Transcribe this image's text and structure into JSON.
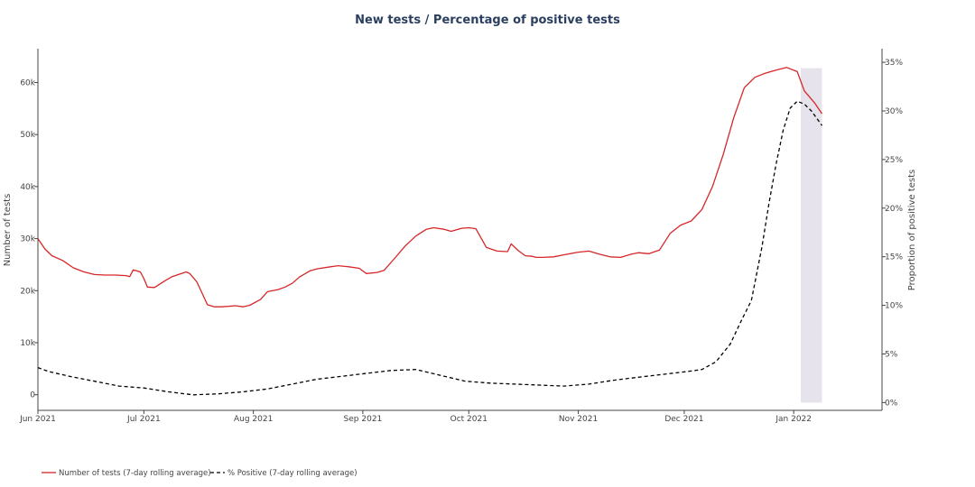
{
  "chart_data": {
    "type": "line",
    "title": "New tests / Percentage of positive tests",
    "xlabel": "",
    "ylabel": "Number of tests",
    "y2label": "Proportion of positive tests",
    "x_range": [
      "2021-06-01",
      "2022-01-26"
    ],
    "ylim": [
      -3000,
      66500
    ],
    "y2lim": [
      -0.8,
      36.4
    ],
    "x_ticks": [
      {
        "date": "2021-06-01",
        "label": "Jun 2021"
      },
      {
        "date": "2021-07-01",
        "label": "Jul 2021"
      },
      {
        "date": "2021-08-01",
        "label": "Aug 2021"
      },
      {
        "date": "2021-09-01",
        "label": "Sep 2021"
      },
      {
        "date": "2021-10-01",
        "label": "Oct 2021"
      },
      {
        "date": "2021-11-01",
        "label": "Nov 2021"
      },
      {
        "date": "2021-12-01",
        "label": "Dec 2021"
      },
      {
        "date": "2022-01-01",
        "label": "Jan 2022"
      }
    ],
    "y_ticks": [
      {
        "value": 0,
        "label": "0"
      },
      {
        "value": 10000,
        "label": "10k"
      },
      {
        "value": 20000,
        "label": "20k"
      },
      {
        "value": 30000,
        "label": "30k"
      },
      {
        "value": 40000,
        "label": "40k"
      },
      {
        "value": 50000,
        "label": "50k"
      },
      {
        "value": 60000,
        "label": "60k"
      }
    ],
    "y2_ticks": [
      {
        "value": 0,
        "label": "0%"
      },
      {
        "value": 5,
        "label": "5%"
      },
      {
        "value": 10,
        "label": "10%"
      },
      {
        "value": 15,
        "label": "15%"
      },
      {
        "value": 20,
        "label": "20%"
      },
      {
        "value": 25,
        "label": "25%"
      },
      {
        "value": 30,
        "label": "30%"
      },
      {
        "value": 35,
        "label": "35%"
      }
    ],
    "shaded_region": {
      "x_start": "2022-01-03",
      "x_end": "2022-01-09",
      "y2_start": 0,
      "y2_end": 34.4,
      "color": "#e6e3ec"
    },
    "grid": false,
    "legend_position": "bottom-left",
    "series": [
      {
        "name": "Number of tests (7-day rolling average)",
        "axis": "y",
        "color": "#d62728",
        "dash": "solid",
        "x": [
          "2021-06-01",
          "2021-06-03",
          "2021-06-05",
          "2021-06-08",
          "2021-06-11",
          "2021-06-14",
          "2021-06-17",
          "2021-06-20",
          "2021-06-23",
          "2021-06-26",
          "2021-06-27",
          "2021-06-28",
          "2021-06-30",
          "2021-07-01",
          "2021-07-02",
          "2021-07-04",
          "2021-07-07",
          "2021-07-09",
          "2021-07-13",
          "2021-07-14",
          "2021-07-16",
          "2021-07-19",
          "2021-07-21",
          "2021-07-23",
          "2021-07-25",
          "2021-07-27",
          "2021-07-29",
          "2021-07-31",
          "2021-08-03",
          "2021-08-05",
          "2021-08-08",
          "2021-08-10",
          "2021-08-12",
          "2021-08-14",
          "2021-08-17",
          "2021-08-19",
          "2021-08-22",
          "2021-08-25",
          "2021-08-28",
          "2021-08-31",
          "2021-09-02",
          "2021-09-05",
          "2021-09-07",
          "2021-09-10",
          "2021-09-13",
          "2021-09-16",
          "2021-09-19",
          "2021-09-21",
          "2021-09-24",
          "2021-09-26",
          "2021-09-29",
          "2021-10-01",
          "2021-10-03",
          "2021-10-06",
          "2021-10-09",
          "2021-10-12",
          "2021-10-13",
          "2021-10-15",
          "2021-10-17",
          "2021-10-19",
          "2021-10-20",
          "2021-10-22",
          "2021-10-25",
          "2021-10-28",
          "2021-11-01",
          "2021-11-04",
          "2021-11-07",
          "2021-11-10",
          "2021-11-13",
          "2021-11-16",
          "2021-11-18",
          "2021-11-21",
          "2021-11-24",
          "2021-11-27",
          "2021-11-30",
          "2021-12-03",
          "2021-12-06",
          "2021-12-09",
          "2021-12-12",
          "2021-12-15",
          "2021-12-18",
          "2021-12-21",
          "2021-12-24",
          "2021-12-27",
          "2021-12-30",
          "2022-01-02",
          "2022-01-04",
          "2022-01-07",
          "2022-01-09"
        ],
        "values": [
          30000,
          28000,
          26700,
          25800,
          24400,
          23600,
          23100,
          23000,
          23000,
          22900,
          22700,
          24000,
          23600,
          22300,
          20700,
          20600,
          21900,
          22700,
          23600,
          23300,
          21700,
          17300,
          16900,
          16900,
          17000,
          17100,
          16900,
          17200,
          18300,
          19800,
          20200,
          20700,
          21400,
          22600,
          23800,
          24200,
          24500,
          24800,
          24600,
          24300,
          23300,
          23500,
          23900,
          26200,
          28600,
          30500,
          31800,
          32100,
          31800,
          31400,
          32000,
          32100,
          31900,
          28300,
          27600,
          27500,
          29000,
          27700,
          26700,
          26600,
          26400,
          26400,
          26500,
          26900,
          27400,
          27600,
          27000,
          26500,
          26400,
          27000,
          27300,
          27100,
          27800,
          31000,
          32600,
          33400,
          35600,
          40000,
          46100,
          53200,
          59000,
          61000,
          61800,
          62400,
          62900,
          62100,
          58400,
          56000,
          54000
        ]
      },
      {
        "name": "% Positive (7-day rolling average)",
        "axis": "y2",
        "color": "#000000",
        "dash": "dashed",
        "x": [
          "2021-06-01",
          "2021-06-04",
          "2021-06-10",
          "2021-06-17",
          "2021-06-24",
          "2021-07-01",
          "2021-07-08",
          "2021-07-15",
          "2021-07-22",
          "2021-07-29",
          "2021-08-05",
          "2021-08-12",
          "2021-08-19",
          "2021-08-26",
          "2021-09-02",
          "2021-09-09",
          "2021-09-16",
          "2021-09-23",
          "2021-09-30",
          "2021-10-07",
          "2021-10-14",
          "2021-10-21",
          "2021-10-28",
          "2021-11-04",
          "2021-11-11",
          "2021-11-18",
          "2021-11-25",
          "2021-12-02",
          "2021-12-06",
          "2021-12-10",
          "2021-12-14",
          "2021-12-17",
          "2021-12-20",
          "2021-12-23",
          "2021-12-25",
          "2021-12-27",
          "2021-12-29",
          "2021-12-31",
          "2022-01-02",
          "2022-01-04",
          "2022-01-06",
          "2022-01-09"
        ],
        "values": [
          3.6,
          3.2,
          2.7,
          2.2,
          1.7,
          1.5,
          1.1,
          0.8,
          0.9,
          1.1,
          1.4,
          1.9,
          2.4,
          2.7,
          3.0,
          3.3,
          3.4,
          2.8,
          2.2,
          2.0,
          1.9,
          1.8,
          1.7,
          1.9,
          2.3,
          2.6,
          2.9,
          3.2,
          3.4,
          4.2,
          6.0,
          8.3,
          10.5,
          16.0,
          20.5,
          24.5,
          28.0,
          30.3,
          31.0,
          30.7,
          30.0,
          28.5
        ]
      }
    ]
  }
}
